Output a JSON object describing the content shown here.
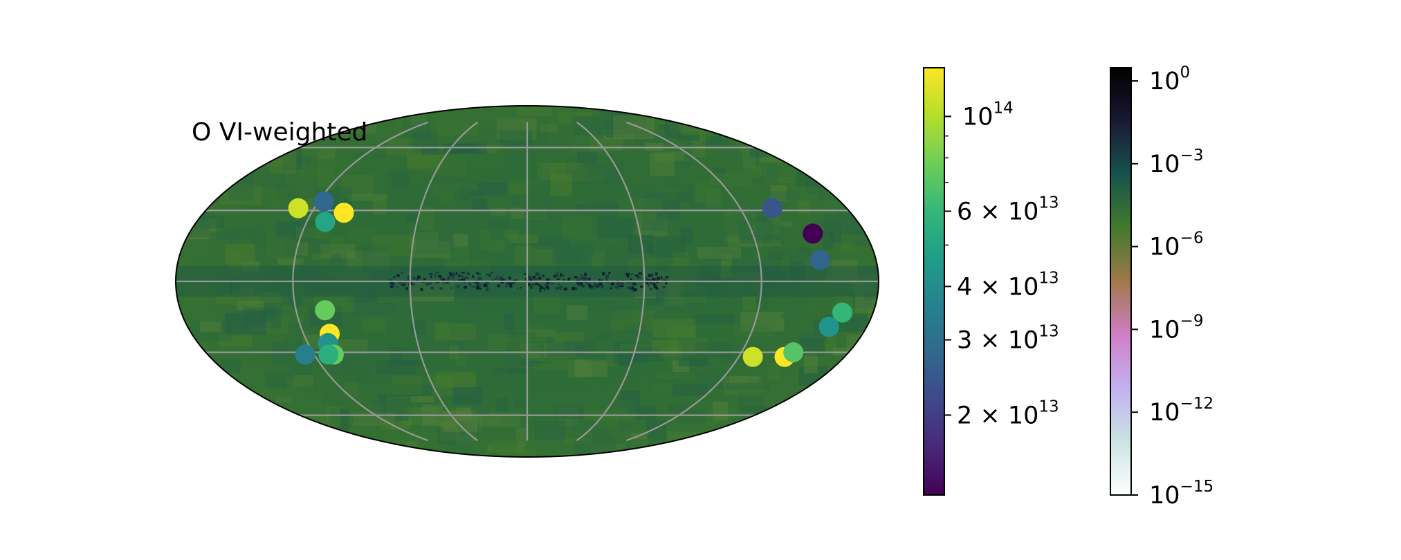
{
  "chart_data": {
    "type": "scatter",
    "projection": "mollweide",
    "panel_label": "O VI-weighted",
    "grid": true,
    "grid_color": "#999999",
    "background_map": {
      "description_colormap": "cubehelix_r",
      "colorbar_scale": "log",
      "colorbar_range": [
        1e-15,
        3
      ],
      "colorbar_ticks": [
        {
          "value": 1,
          "base": "10",
          "exp": "0"
        },
        {
          "value": 0.001,
          "base": "10",
          "exp": "−3"
        },
        {
          "value": 1e-06,
          "base": "10",
          "exp": "−6"
        },
        {
          "value": 1e-09,
          "base": "10",
          "exp": "−9"
        },
        {
          "value": 1e-12,
          "base": "10",
          "exp": "−12"
        },
        {
          "value": 1e-15,
          "base": "10",
          "exp": "−15"
        }
      ],
      "colorbar_stops": [
        "#000000",
        "#1a1935",
        "#16534c",
        "#427a2d",
        "#a07949",
        "#d07ec7",
        "#c2b1f0",
        "#c9e5e3",
        "#ffffff"
      ]
    },
    "points_colorbar": {
      "colormap": "viridis",
      "scale": "log",
      "range": [
        13000000000000.0,
        130000000000000.0
      ],
      "major_ticks": [
        {
          "value": 100000000000000.0,
          "mant": "",
          "base": "10",
          "exp": "14"
        },
        {
          "value": 60000000000000.0,
          "mant": "6 × ",
          "base": "10",
          "exp": "13"
        },
        {
          "value": 40000000000000.0,
          "mant": "4 × ",
          "base": "10",
          "exp": "13"
        },
        {
          "value": 30000000000000.0,
          "mant": "3 × ",
          "base": "10",
          "exp": "13"
        },
        {
          "value": 20000000000000.0,
          "mant": "2 × ",
          "base": "10",
          "exp": "13"
        }
      ],
      "minor_ticks": [
        90000000000000.0,
        80000000000000.0,
        70000000000000.0,
        50000000000000.0
      ],
      "viridis_stops": [
        "#440154",
        "#482878",
        "#3e4989",
        "#31688e",
        "#26828e",
        "#1f9e89",
        "#35b779",
        "#6ece58",
        "#b5de2b",
        "#fde725"
      ]
    },
    "points": [
      {
        "lon": -129,
        "lat": 31,
        "value": 110000000000000.0
      },
      {
        "lon": -117,
        "lat": 34,
        "value": 28000000000000.0
      },
      {
        "lon": -110,
        "lat": 25,
        "value": 50000000000000.0
      },
      {
        "lon": -102,
        "lat": 29,
        "value": 130000000000000.0
      },
      {
        "lon": -105,
        "lat": -12,
        "value": 75000000000000.0
      },
      {
        "lon": -106,
        "lat": -22,
        "value": 130000000000000.0
      },
      {
        "lon": -109,
        "lat": -26,
        "value": 42000000000000.0
      },
      {
        "lon": -125,
        "lat": -31,
        "value": 35000000000000.0
      },
      {
        "lon": -109,
        "lat": -31,
        "value": 75000000000000.0
      },
      {
        "lon": -112,
        "lat": -31,
        "value": 55000000000000.0
      },
      {
        "lon": 138,
        "lat": 31,
        "value": 24000000000000.0
      },
      {
        "lon": 152,
        "lat": 20,
        "value": 13000000000000.0
      },
      {
        "lon": 151,
        "lat": 9,
        "value": 27000000000000.0
      },
      {
        "lon": 164,
        "lat": -13,
        "value": 60000000000000.0
      },
      {
        "lon": 160,
        "lat": -19,
        "value": 43000000000000.0
      },
      {
        "lon": 128,
        "lat": -32,
        "value": 110000000000000.0
      },
      {
        "lon": 146,
        "lat": -32,
        "value": 135000000000000.0
      },
      {
        "lon": 149,
        "lat": -30,
        "value": 70000000000000.0
      }
    ]
  }
}
